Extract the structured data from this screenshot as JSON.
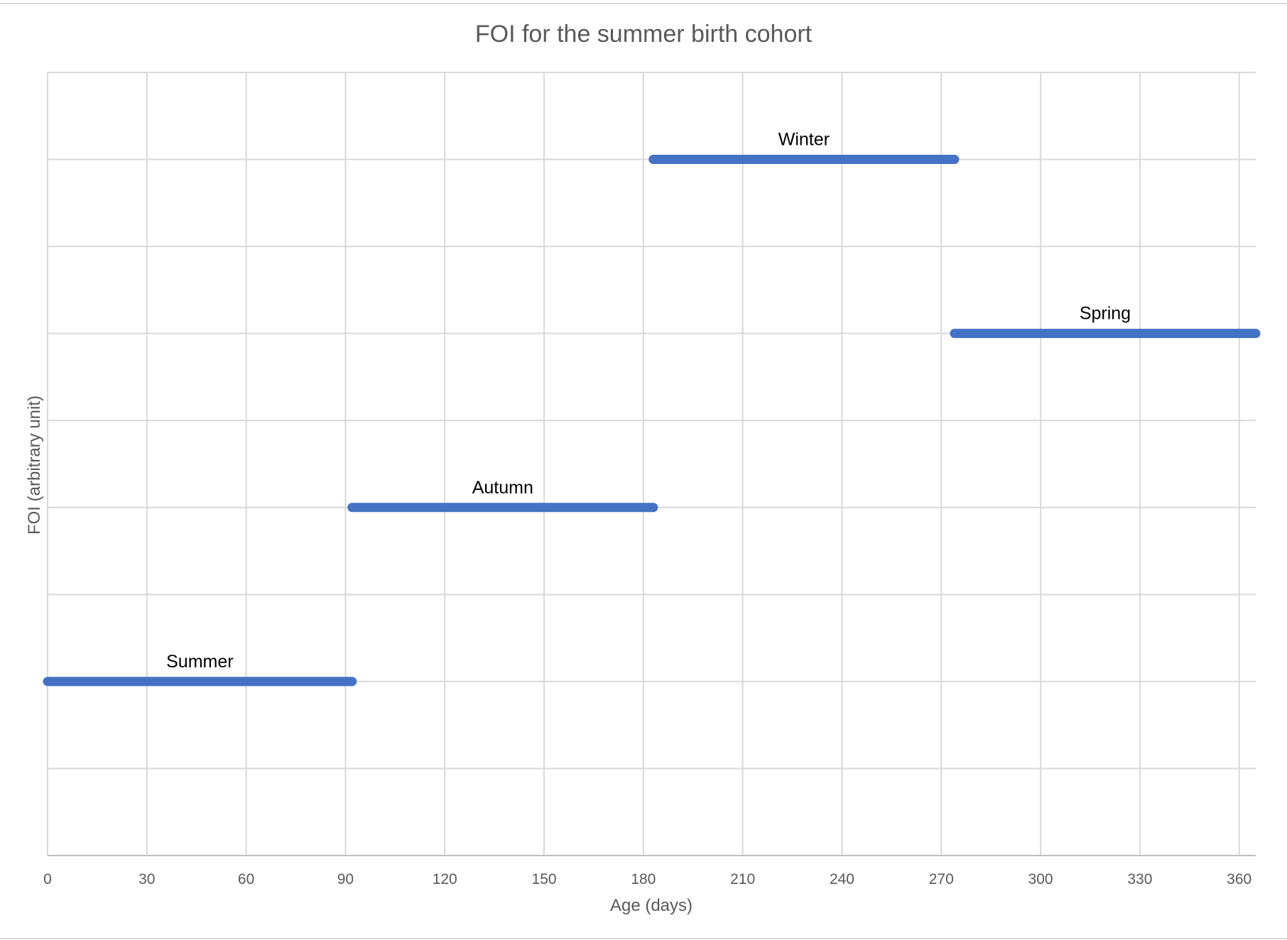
{
  "chart_data": {
    "type": "line",
    "title": "FOI for the summer birth cohort",
    "xlabel": "Age (days)",
    "ylabel": "FOI (arbitrary unit)",
    "xlim": [
      0,
      365
    ],
    "ylim": [
      0,
      9
    ],
    "x_ticks": [
      0,
      30,
      60,
      90,
      120,
      150,
      180,
      210,
      240,
      270,
      300,
      330,
      360
    ],
    "y_gridlines": [
      0,
      1,
      2,
      3,
      4,
      5,
      6,
      7,
      8,
      9
    ],
    "y_tick_labels_shown": false,
    "grid": true,
    "legend": "none",
    "color": "#4472c4",
    "series": [
      {
        "label": "Summer",
        "x": [
          0,
          92
        ],
        "y": [
          2,
          2
        ]
      },
      {
        "label": "Autumn",
        "x": [
          92,
          183
        ],
        "y": [
          4,
          4
        ]
      },
      {
        "label": "Winter",
        "x": [
          183,
          274
        ],
        "y": [
          8,
          8
        ]
      },
      {
        "label": "Spring",
        "x": [
          274,
          365
        ],
        "y": [
          6,
          6
        ]
      }
    ]
  }
}
